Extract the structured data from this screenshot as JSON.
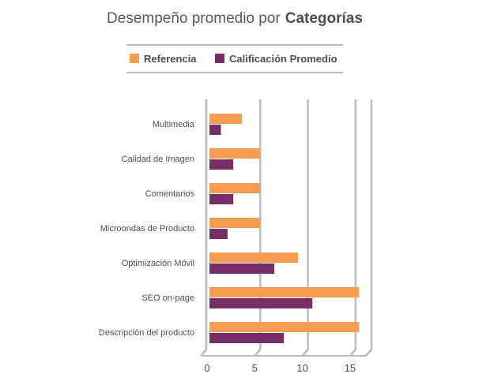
{
  "chart_data": {
    "type": "bar",
    "orientation": "horizontal",
    "title_prefix": "Desempeño promedio por",
    "title_emphasis": "Categorías",
    "categories": [
      "Multimedia",
      "Calidad de Imagen",
      "Comentarios",
      "Microondas de Producto",
      "Optimización Móvil",
      "SEO on-page",
      "Descripción del producto"
    ],
    "series": [
      {
        "name": "Referencia",
        "color": "#f79d52",
        "values": [
          3.4,
          5.3,
          5.3,
          5.3,
          9.3,
          15.7,
          15.7
        ]
      },
      {
        "name": "Calificación Promedio",
        "color": "#772d65",
        "values": [
          1.2,
          2.5,
          2.5,
          1.9,
          6.8,
          10.8,
          7.8
        ]
      }
    ],
    "xlim": [
      0,
      17
    ],
    "xticks": [
      "0",
      "5",
      "10",
      "15"
    ],
    "xtick_values": [
      0,
      5,
      10,
      15
    ],
    "grid": true,
    "legend_position": "top",
    "axis_color": "#b8bcc0"
  }
}
